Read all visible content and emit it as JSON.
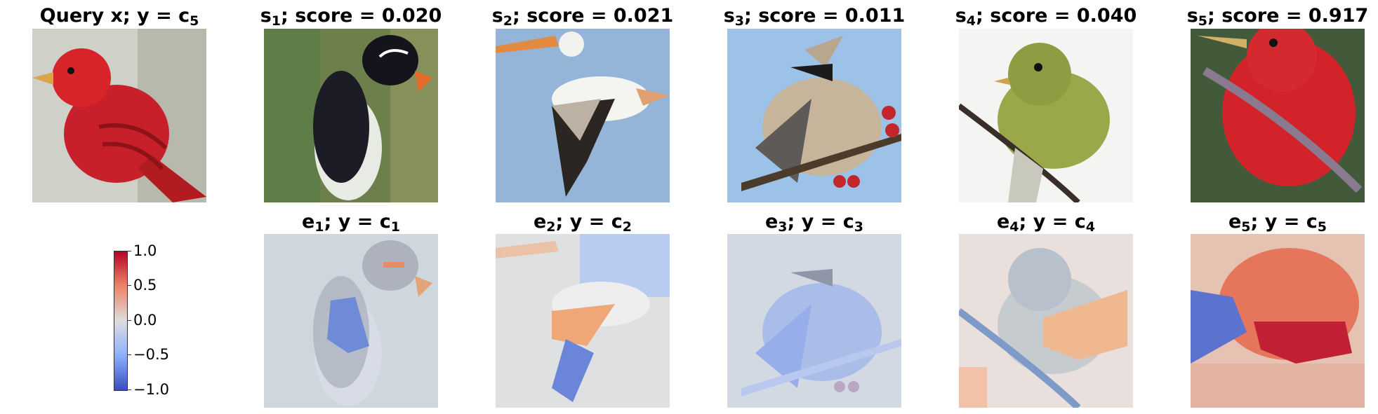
{
  "top_row": [
    {
      "name": "Query x",
      "prefix": "Query x; y = c",
      "sub": "5"
    },
    {
      "name": "s1",
      "head": "s",
      "sub": "1",
      "suffix": "; score = 0.020"
    },
    {
      "name": "s2",
      "head": "s",
      "sub": "2",
      "suffix": "; score = 0.021"
    },
    {
      "name": "s3",
      "head": "s",
      "sub": "3",
      "suffix": "; score = 0.011"
    },
    {
      "name": "s4",
      "head": "s",
      "sub": "4",
      "suffix": "; score = 0.040"
    },
    {
      "name": "s5",
      "head": "s",
      "sub": "5",
      "suffix": "; score = 0.917"
    }
  ],
  "bottom_row": [
    {
      "head": "e",
      "sub": "1",
      "mid": "; y = c",
      "sub2": "1"
    },
    {
      "head": "e",
      "sub": "2",
      "mid": "; y = c",
      "sub2": "2"
    },
    {
      "head": "e",
      "sub": "3",
      "mid": "; y = c",
      "sub2": "3"
    },
    {
      "head": "e",
      "sub": "4",
      "mid": "; y = c",
      "sub2": "4"
    },
    {
      "head": "e",
      "sub": "5",
      "mid": "; y = c",
      "sub2": "5"
    }
  ],
  "colorbar": {
    "ticks": [
      "1.0",
      "0.5",
      "0.0",
      "−0.5",
      "−1.0"
    ],
    "colormap": [
      "#b40426",
      "#ee8468",
      "#dddddd",
      "#8db0fe",
      "#3b4cc0"
    ]
  }
}
